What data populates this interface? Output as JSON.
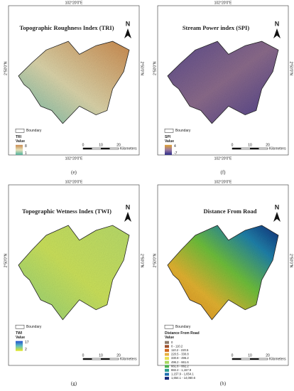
{
  "panels": [
    {
      "caption": "(e)",
      "title": "Topographic Roughness Index (TRI)",
      "coord_top": "102°20'0\"E",
      "coord_bottom": "102°20'0\"E",
      "coord_left": "2°50'0\"N",
      "coord_right": "2°50'0\"N",
      "north": "N",
      "boundary": "Boundary",
      "legend_title": "TRI",
      "legend_value": "Value",
      "ramp_high": "8",
      "ramp_low": "1",
      "scale": [
        "0",
        "10",
        "20"
      ],
      "scale_unit": "Kilometers"
    },
    {
      "caption": "(f)",
      "title": "Stream Power index (SPI)",
      "coord_top": "102°20'0\"E",
      "coord_bottom": "102°20'0\"E",
      "coord_left": "2°50'0\"N",
      "coord_right": "2°50'0\"N",
      "north": "N",
      "boundary": "Boundary",
      "legend_title": "SPI",
      "legend_value": "Value",
      "ramp_high": "4",
      "ramp_low": "-7",
      "scale": [
        "0",
        "10",
        "20"
      ],
      "scale_unit": "Kilometers"
    },
    {
      "caption": "(g)",
      "title": "Topographic Wetness Index (TWI)",
      "coord_top": "102°20'0\"E",
      "coord_left": "2°50'0\"N",
      "coord_right": "2°50'0\"N",
      "north": "N",
      "boundary": "Boundary",
      "legend_title": "TWI",
      "legend_value": "Value",
      "ramp_high": "17",
      "ramp_low": "2",
      "scale": [
        "0",
        "10",
        "20"
      ],
      "scale_unit": "Kilometers"
    },
    {
      "caption": "(h)",
      "title": "Distance From Road",
      "coord_top": "102°20'0\"E",
      "coord_left": "2°50'0\"N",
      "coord_right": "2°50'0\"N",
      "north": "N",
      "boundary": "Boundary",
      "legend_title": "Distance From Road",
      "legend_value": "Value",
      "classes": [
        "0",
        "0 - 110.2",
        "110.2 - 220.5",
        "220.5 - 330.8",
        "330.8 - 496.2",
        "496.2 - 661.6",
        "661.6 - 882.2",
        "882.2 - 1,157.9",
        "1,157.9 - 1,654.1",
        "1,654.1 - 14,060.6"
      ],
      "scale": [
        "0",
        "10",
        "20"
      ],
      "scale_unit": "Kilometers"
    }
  ]
}
